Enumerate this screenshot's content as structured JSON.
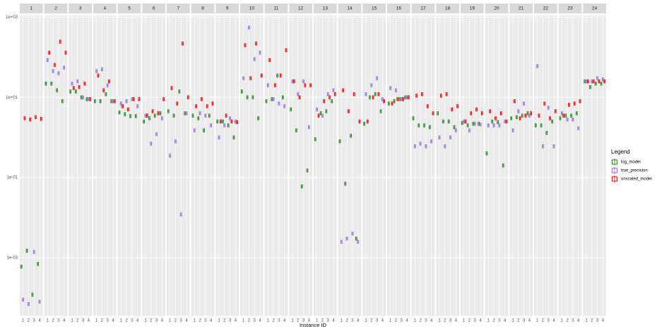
{
  "chart_data": {
    "type": "box",
    "x_label": "Instance ID",
    "legend_title": "Legend",
    "legend": "right",
    "log_y": true,
    "grid": true,
    "facets": [
      "1",
      "2",
      "3",
      "4",
      "5",
      "6",
      "7",
      "8",
      "9",
      "10",
      "11",
      "12",
      "13",
      "14",
      "15",
      "16",
      "17",
      "18",
      "19",
      "20",
      "21",
      "22",
      "23",
      "24"
    ],
    "categories": [
      "1",
      "2",
      "3",
      "4"
    ],
    "ylim": [
      3.6e-05,
      1100
    ],
    "yticks": [
      {
        "value": 0.001,
        "label": "1e-03"
      },
      {
        "value": 0.1,
        "label": "1e-01"
      },
      {
        "value": 10,
        "label": "1e+01"
      },
      {
        "value": 1000,
        "label": "1e+03"
      }
    ],
    "series": [
      {
        "name": "log_model",
        "color": "#228b22",
        "values": [
          [
            0.0006,
            0.0015,
            0.00012,
            0.0007
          ],
          [
            22,
            22,
            15,
            8
          ],
          [
            14,
            14,
            10,
            9
          ],
          [
            8,
            8,
            12,
            8
          ],
          [
            4.2,
            3.8,
            3.4,
            3.4
          ],
          [
            2.5,
            3,
            3.5,
            4
          ],
          [
            4.5,
            3.5,
            14,
            4
          ],
          [
            3.5,
            3,
            1.5,
            3.5
          ],
          [
            2.5,
            2.5,
            2,
            1
          ],
          [
            14,
            10,
            10,
            3
          ],
          [
            8,
            9,
            35,
            10
          ],
          [
            5,
            1.5,
            0.06,
            0.15
          ],
          [
            0.9,
            4,
            4.5,
            8
          ],
          [
            0.8,
            0.07,
            1.1,
            0.003
          ],
          [
            2.2,
            10,
            12,
            4.5
          ],
          [
            7,
            8,
            9,
            10
          ],
          [
            3,
            2,
            2,
            1.8
          ],
          [
            4,
            2.5,
            2.5,
            1.8
          ],
          [
            2.3,
            2,
            2.2,
            2.2
          ],
          [
            0.4,
            2.5,
            2.4,
            0.2
          ],
          [
            3,
            3.2,
            3.5,
            4
          ],
          [
            2,
            2,
            1.3,
            2.5
          ],
          [
            3,
            3.5,
            3.5,
            4
          ],
          [
            25,
            18,
            22,
            22
          ]
        ]
      },
      {
        "name": "true_precision",
        "color": "#9370db",
        "values": [
          [
            9e-05,
            7e-05,
            0.0014,
            8e-05
          ],
          [
            85,
            45,
            40,
            55
          ],
          [
            22,
            25,
            10,
            9
          ],
          [
            45,
            50,
            20,
            8
          ],
          [
            7,
            8,
            9,
            6
          ],
          [
            3.5,
            0.7,
            1.2,
            3
          ],
          [
            0.35,
            0.8,
            0.012,
            4
          ],
          [
            1.5,
            4,
            3.5,
            2
          ],
          [
            1,
            2,
            3,
            2.5
          ],
          [
            30,
            550,
            90,
            130
          ],
          [
            20,
            9,
            7,
            6
          ],
          [
            25,
            12,
            25,
            1.8
          ],
          [
            5,
            3.5,
            12,
            15
          ],
          [
            0.0025,
            0.003,
            0.004,
            0.0025
          ],
          [
            12,
            20,
            30,
            9
          ],
          [
            17,
            15,
            9,
            10
          ],
          [
            0.6,
            0.7,
            0.6,
            0.8
          ],
          [
            1,
            0.6,
            1,
            1.5
          ],
          [
            2.5,
            1.5,
            2.2,
            2.1
          ],
          [
            2,
            2,
            2,
            2.5
          ],
          [
            1.5,
            4.5,
            7,
            3.5
          ],
          [
            60,
            0.6,
            5.5,
            0.6
          ],
          [
            4,
            2.8,
            2.8,
            1.7
          ],
          [
            25,
            25,
            30,
            28
          ]
        ]
      },
      {
        "name": "unscaled_model",
        "color": "#ff0000",
        "values": [
          [
            3,
            2.8,
            3.2,
            2.9
          ],
          [
            130,
            64,
            245,
            130
          ],
          [
            17,
            18,
            22,
            9
          ],
          [
            35,
            15,
            25,
            8
          ],
          [
            6,
            5,
            9,
            9
          ],
          [
            3.5,
            4.5,
            4,
            9
          ],
          [
            17,
            7,
            220,
            10
          ],
          [
            6,
            9,
            6,
            7
          ],
          [
            2.5,
            3.5,
            2.5,
            2.4
          ],
          [
            200,
            30,
            220,
            35
          ],
          [
            85,
            20,
            35,
            150
          ],
          [
            25,
            10,
            20,
            20
          ],
          [
            3.5,
            8,
            10,
            12
          ],
          [
            15,
            4.5,
            12,
            2.5
          ],
          [
            2.5,
            10,
            12,
            8
          ],
          [
            7,
            9,
            9,
            10
          ],
          [
            11,
            12,
            6,
            4
          ],
          [
            11,
            12,
            5,
            6
          ],
          [
            2.5,
            4,
            5,
            4
          ],
          [
            4.5,
            3,
            4,
            2.5
          ],
          [
            8,
            3,
            3.5,
            4
          ],
          [
            3.5,
            7,
            3,
            4.5
          ],
          [
            3.5,
            6.5,
            7,
            8
          ],
          [
            25,
            25,
            25,
            25
          ]
        ]
      }
    ]
  }
}
